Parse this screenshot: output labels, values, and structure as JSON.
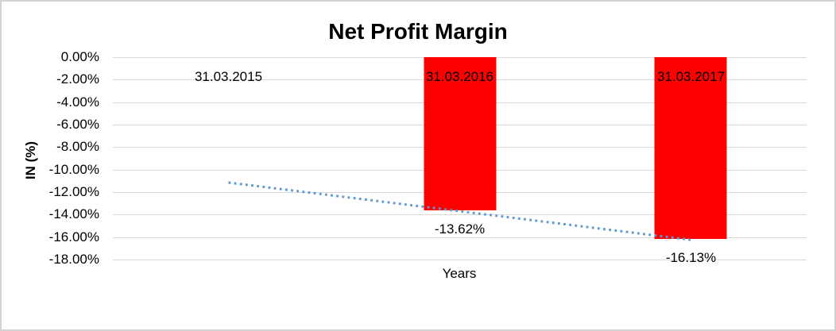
{
  "chart_data": {
    "type": "bar",
    "title": "Net Profit Margin",
    "xlabel": "Years",
    "ylabel": "IN (%)",
    "categories": [
      "31.03.2015",
      "31.03.2016",
      "31.03.2017"
    ],
    "values": [
      null,
      -13.62,
      -16.13
    ],
    "data_labels": [
      "",
      "-13.62%",
      "-16.13%"
    ],
    "y_ticks": [
      "0.00%",
      "-2.00%",
      "-4.00%",
      "-6.00%",
      "-8.00%",
      "-10.00%",
      "-12.00%",
      "-14.00%",
      "-16.00%",
      "-18.00%"
    ],
    "ylim": [
      0,
      -18
    ],
    "grid": true,
    "legend": false,
    "bar_color": "#ff0000",
    "gridline_color": "#d9d9d9",
    "trendline": {
      "type": "linear",
      "style": "dotted",
      "color": "#5b9bd5",
      "start_value": -11.15,
      "end_value": -16.25
    }
  }
}
